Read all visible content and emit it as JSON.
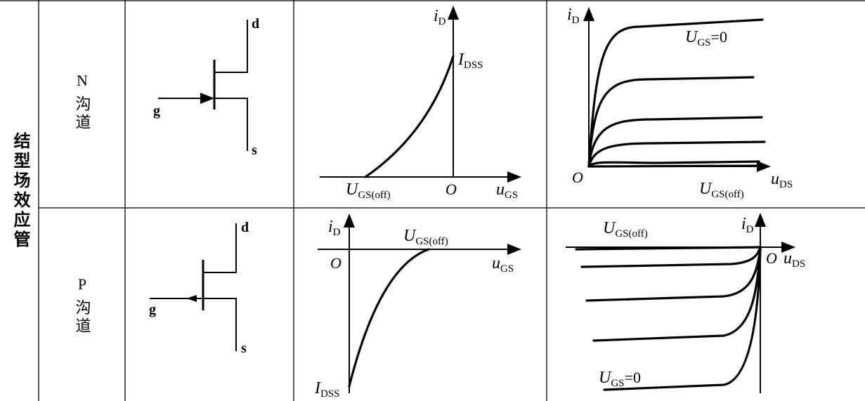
{
  "row_header": "结型场效应管",
  "rows": [
    {
      "channel": "N",
      "channel_word": "沟道",
      "symbol": {
        "drain": "d",
        "gate": "g",
        "source": "s"
      },
      "transfer": {
        "y_axis": {
          "base": "i",
          "sub": "D"
        },
        "peak": {
          "base": "I",
          "sub": "DSS"
        },
        "cutoff": {
          "base": "U",
          "sub": "GS(off)"
        },
        "origin": "O",
        "x_axis": {
          "base": "u",
          "sub": "GS"
        }
      },
      "output": {
        "y_axis": {
          "base": "i",
          "sub": "D"
        },
        "top_curve": {
          "base": "U",
          "sub": "GS",
          "suffix": "=0"
        },
        "origin": "O",
        "cutoff": {
          "base": "U",
          "sub": "GS(off)"
        },
        "x_axis": {
          "base": "u",
          "sub": "DS"
        }
      }
    },
    {
      "channel": "P",
      "channel_word": "沟道",
      "symbol": {
        "drain": "d",
        "gate": "g",
        "source": "s"
      },
      "transfer": {
        "y_axis": {
          "base": "i",
          "sub": "D"
        },
        "cutoff": {
          "base": "U",
          "sub": "GS(off)"
        },
        "origin": "O",
        "x_axis": {
          "base": "u",
          "sub": "GS"
        },
        "peak": {
          "base": "I",
          "sub": "DSS"
        }
      },
      "output": {
        "cutoff": {
          "base": "U",
          "sub": "GS(off)"
        },
        "y_axis": {
          "base": "i",
          "sub": "D"
        },
        "origin": "O",
        "x_axis": {
          "base": "u",
          "sub": "DS"
        },
        "top_curve": {
          "base": "U",
          "sub": "GS",
          "suffix": "=0"
        }
      }
    }
  ]
}
